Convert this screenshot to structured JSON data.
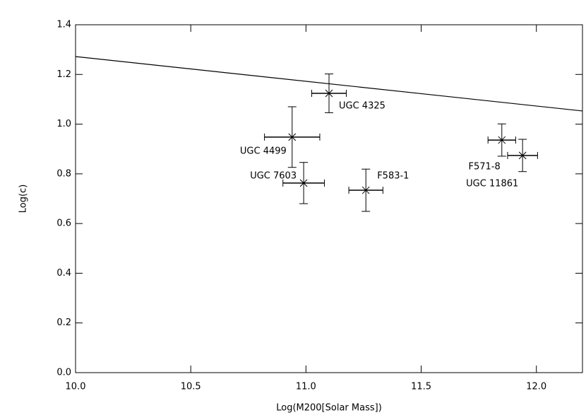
{
  "chart_data": {
    "type": "scatter",
    "x_label": "Log(M200[Solar Mass])",
    "y_label": "Log(c)",
    "xlim": [
      10.0,
      12.2
    ],
    "xticks": [
      {
        "value": 10,
        "label": "10.0"
      },
      10.5,
      {
        "value": 11,
        "label": "11.0"
      },
      11.5,
      {
        "value": 12,
        "label": "12.0"
      }
    ],
    "ylim": [
      0,
      1.4
    ],
    "yticks": [
      {
        "value": 0,
        "label": "0.0"
      },
      0.2,
      0.4,
      0.6,
      0.8,
      {
        "value": 1,
        "label": "1.0"
      },
      1.2,
      1.4
    ],
    "color": "#000000",
    "points": {
      "labels": [
        "UGC 4325",
        "UGC 4499",
        "UGC 7603",
        "F583-1",
        "F571-8",
        "UGC 11861"
      ],
      "x": [
        11.1,
        10.94,
        10.99,
        11.26,
        11.85,
        11.94
      ],
      "values": [
        1.124,
        0.948,
        0.763,
        0.734,
        0.936,
        0.874
      ],
      "x_err": [
        0.075,
        0.12,
        0.09,
        0.074,
        0.06,
        0.065
      ],
      "y_err": [
        0.078,
        0.122,
        0.083,
        0.085,
        0.065,
        0.065
      ]
    },
    "fit": {
      "x": [
        10.0,
        12.2
      ],
      "values": [
        1.272,
        1.053
      ]
    }
  }
}
